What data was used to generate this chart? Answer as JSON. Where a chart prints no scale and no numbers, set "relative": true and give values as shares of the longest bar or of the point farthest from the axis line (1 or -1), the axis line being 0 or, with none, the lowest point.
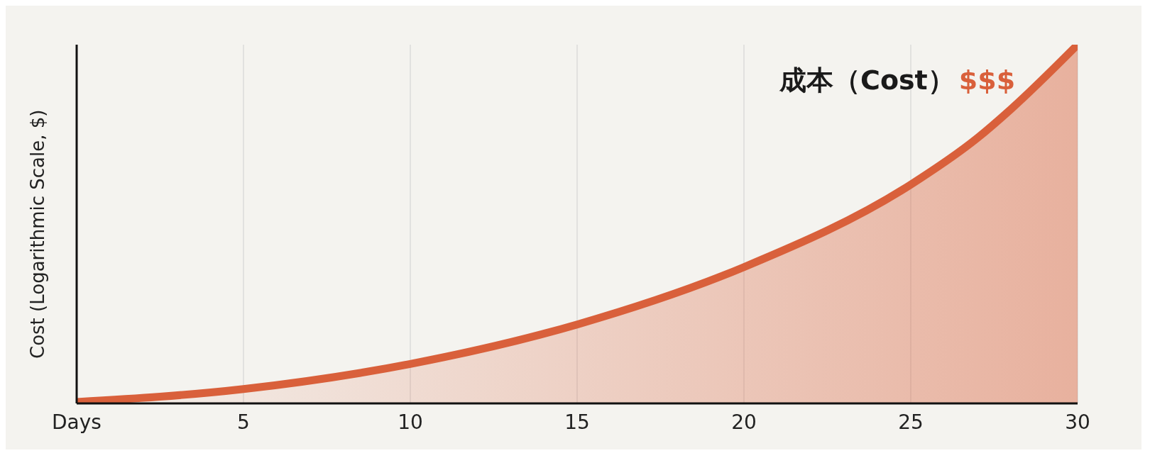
{
  "chart_data": {
    "type": "area",
    "relative": true,
    "ylabel": "Cost (Logarithmic Scale, $)",
    "x": [
      0,
      5,
      10,
      15,
      20,
      25,
      27,
      28,
      30
    ],
    "series": [
      {
        "color": "#d9603b",
        "values": [
          0.004,
          0.04,
          0.11,
          0.22,
          0.38,
          0.61,
          0.74,
          0.82,
          1
        ]
      }
    ],
    "xlim": [
      0,
      30
    ],
    "xticks": [
      {
        "value": 0,
        "label": "Days"
      },
      5,
      10,
      15,
      20,
      25,
      30
    ],
    "grid": "x",
    "line_style": "solid",
    "annotations": [
      "成本（Cost）",
      "$$$"
    ]
  }
}
